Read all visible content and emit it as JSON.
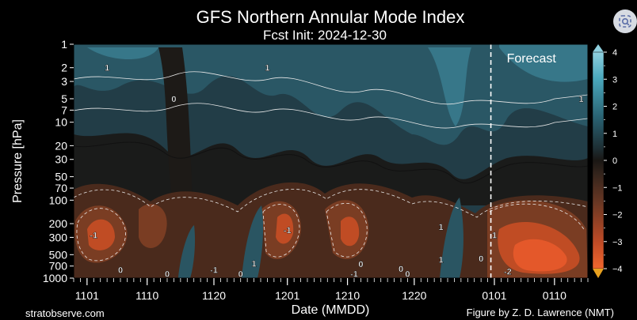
{
  "chart_data": {
    "type": "heatmap",
    "title": "GFS Northern Annular Mode Index",
    "subtitle": "Fcst Init: 2024-12-30",
    "xlabel": "Date (MMDD)",
    "ylabel": "Pressure [hPa]",
    "x_ticks": [
      "1101",
      "1110",
      "1120",
      "1201",
      "1210",
      "1220",
      "0101",
      "0110"
    ],
    "x_range": [
      "1030",
      "0115"
    ],
    "y_ticks": [
      1,
      2,
      3,
      5,
      7,
      10,
      20,
      30,
      50,
      70,
      100,
      200,
      300,
      500,
      700,
      1000
    ],
    "y_scale": "log",
    "y_range": [
      1000,
      1
    ],
    "forecast_start": "1231",
    "annotation": "Forecast",
    "colorbar": {
      "ticks": [
        4,
        3,
        2,
        1,
        0,
        -1,
        -2,
        -3,
        -4
      ],
      "range": [
        -4,
        4
      ],
      "colors": {
        "pos": "#4aa8bd",
        "mid": "#1a1714",
        "neg": "#e2552c"
      }
    },
    "contour_labels": [
      {
        "text": "1",
        "date": "1104",
        "p": 2
      },
      {
        "text": "0",
        "date": "1114",
        "p": 5
      },
      {
        "text": "1",
        "date": "1128",
        "p": 2
      },
      {
        "text": "-1",
        "date": "1102",
        "p": 280
      },
      {
        "text": "-1",
        "date": "1201",
        "p": 240
      },
      {
        "text": "0",
        "date": "1106",
        "p": 780
      },
      {
        "text": "0",
        "date": "1113",
        "p": 880
      },
      {
        "text": "-1",
        "date": "1120",
        "p": 780
      },
      {
        "text": "0",
        "date": "1124",
        "p": 880
      },
      {
        "text": "1",
        "date": "1126",
        "p": 650
      },
      {
        "text": "1",
        "date": "1224",
        "p": 220
      },
      {
        "text": "1",
        "date": "1224",
        "p": 580
      },
      {
        "text": "0",
        "date": "1230",
        "p": 560
      },
      {
        "text": "-1",
        "date": "1211",
        "p": 880
      },
      {
        "text": "0",
        "date": "1212",
        "p": 660
      },
      {
        "text": "0",
        "date": "1218",
        "p": 760
      },
      {
        "text": "0",
        "date": "1219",
        "p": 880
      },
      {
        "text": "1",
        "date": "0101",
        "p": 280
      },
      {
        "text": "-2",
        "date": "0103",
        "p": 820
      },
      {
        "text": "1",
        "date": "0114",
        "p": 5
      }
    ]
  },
  "footer": {
    "left": "stratobserve.com",
    "right": "Figure by Z. D. Lawrence (NMT)"
  },
  "icons": {
    "corner": "lens-search-icon"
  }
}
